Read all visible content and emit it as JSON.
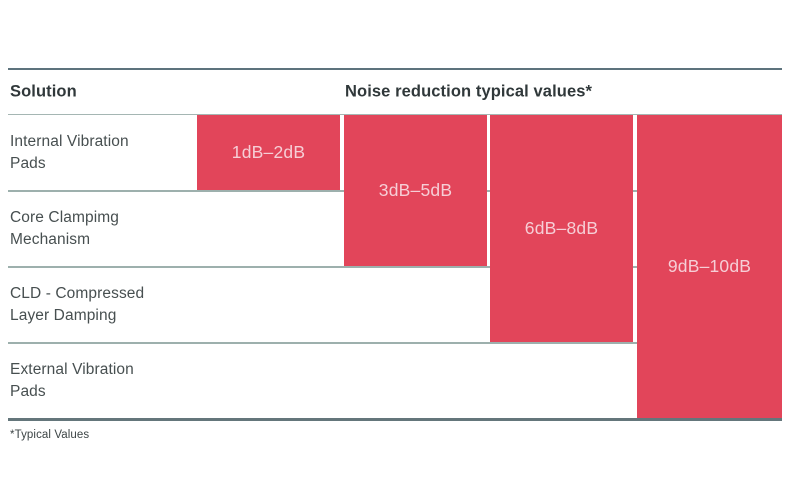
{
  "chart_data": {
    "type": "bar",
    "title": "Noise reduction typical values*",
    "orientation": "stepped-horizontal-blocks",
    "categories": [
      "Internal Vibration Pads",
      "Core Clampimg Mechanism",
      "CLD - Compressed Layer Damping",
      "External Vibration Pads"
    ],
    "series": [
      {
        "name": "Noise reduction range (dB)",
        "values": [
          [
            1,
            2
          ],
          [
            3,
            5
          ],
          [
            6,
            8
          ],
          [
            9,
            10
          ]
        ]
      }
    ],
    "value_labels": [
      "1dB–2dB",
      "3dB–5dB",
      "6dB–8dB",
      "9dB–10dB"
    ],
    "blocks_rows_spanned": [
      1,
      2,
      3,
      4
    ],
    "xlabel": "Solution",
    "ylabel": "",
    "legend": false,
    "grid": false,
    "annotations": [
      "*Typical Values"
    ]
  },
  "table": {
    "header": {
      "solution": "Solution",
      "values": "Noise reduction typical values*"
    },
    "rows": [
      {
        "label": "Internal Vibration Pads"
      },
      {
        "label": "Core Clampimg Mechanism"
      },
      {
        "label": "CLD - Compressed Layer Damping"
      },
      {
        "label": "External Vibration Pads"
      }
    ],
    "blocks": [
      {
        "label": "1dB–2dB",
        "rows_spanned": 1
      },
      {
        "label": "3dB–5dB",
        "rows_spanned": 2
      },
      {
        "label": "6dB–8dB",
        "rows_spanned": 3
      },
      {
        "label": "9dB–10dB",
        "rows_spanned": 4
      }
    ]
  },
  "footnote": "*Typical Values",
  "colors": {
    "bar_red": "#e2455a",
    "bar_label_pink": "#f6ced6",
    "text_dark": "#30383a",
    "body_text": "#474f50",
    "rule_dark": "#5d737d",
    "rule_bottom": "#64767b",
    "rule_light": "#9db0ad",
    "background": "#ffffff"
  }
}
